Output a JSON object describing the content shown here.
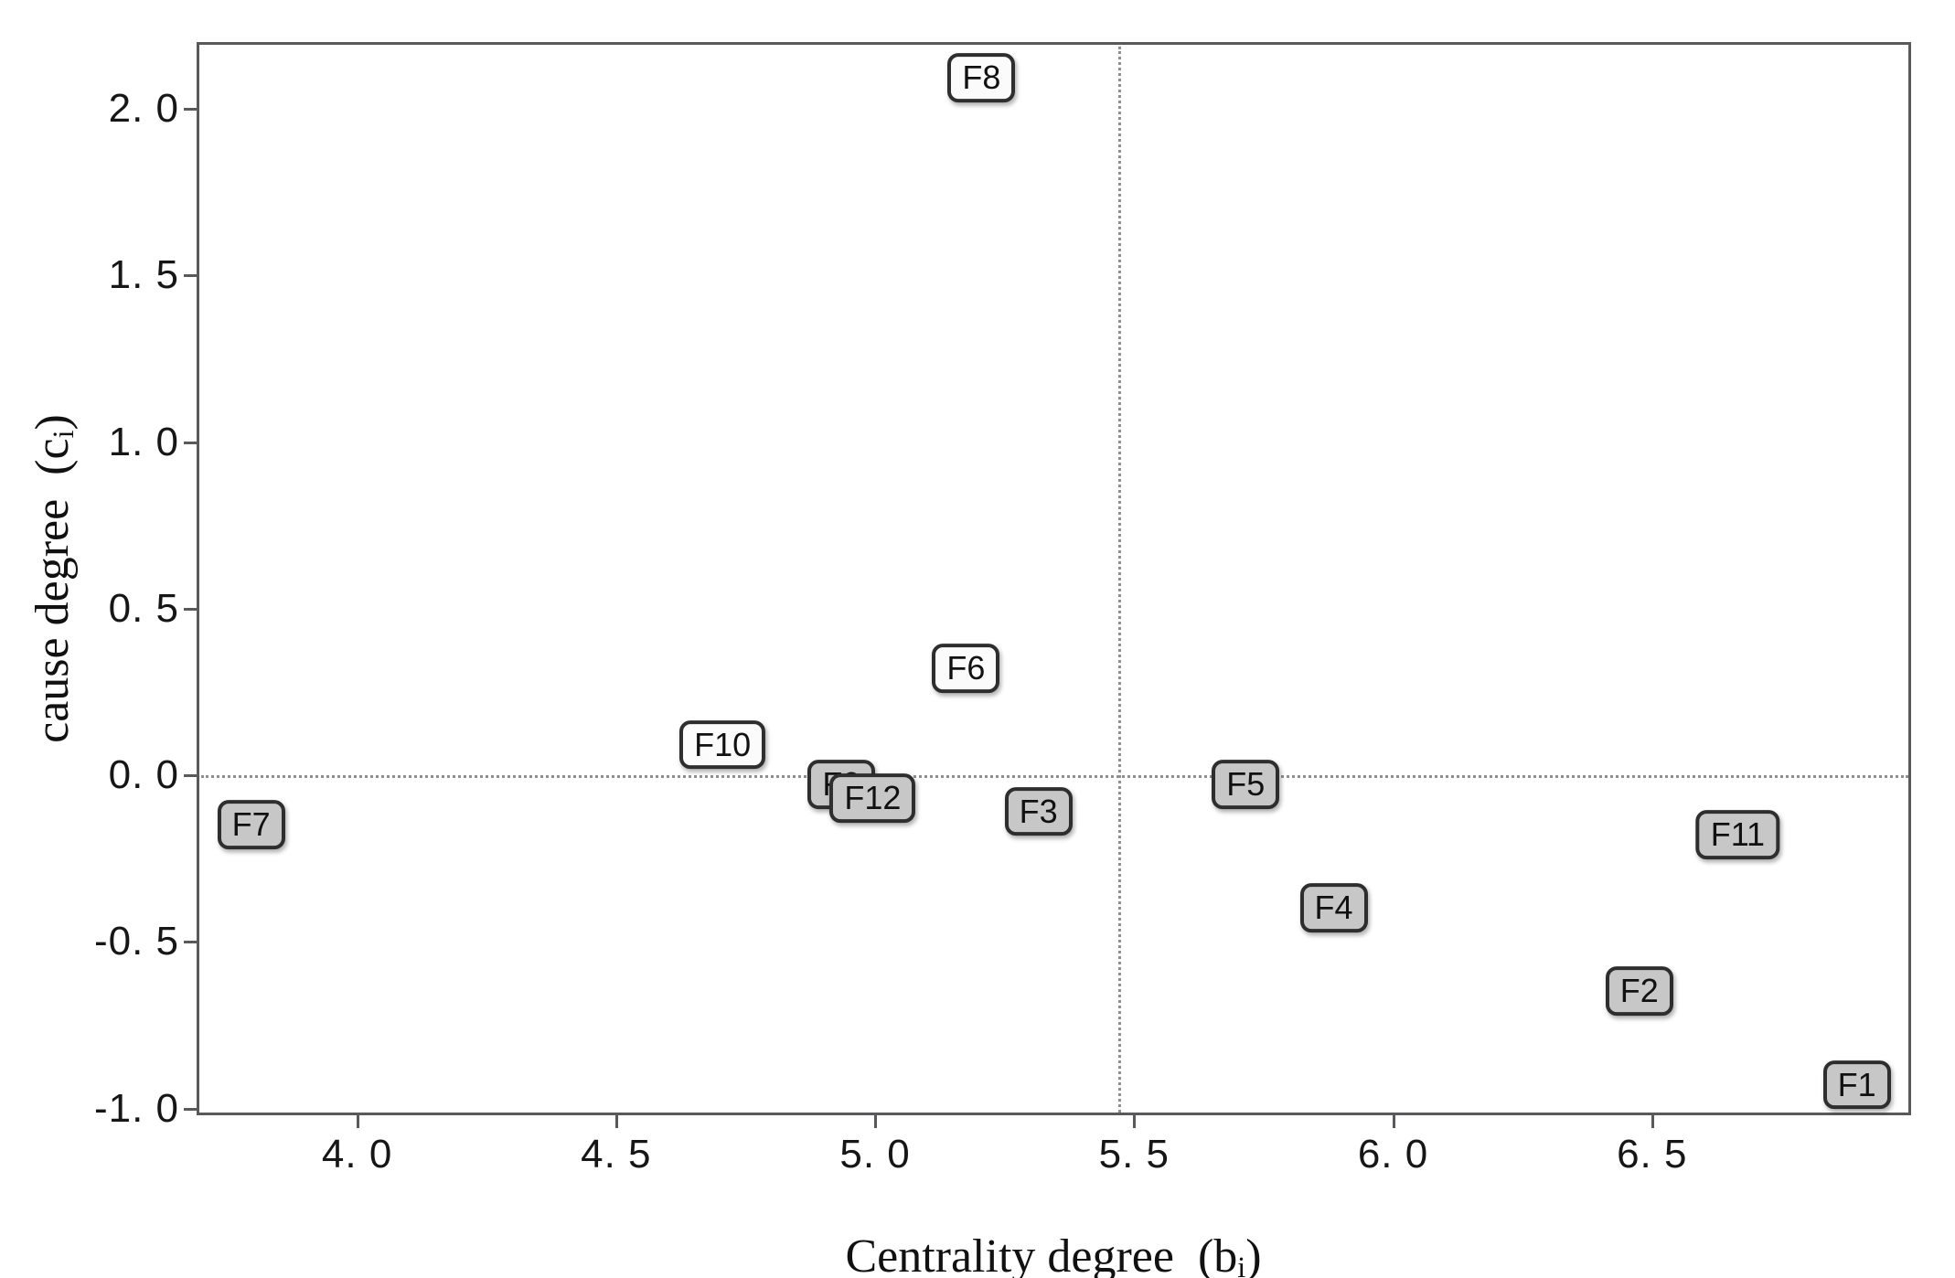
{
  "figure": {
    "x_axis_title": {
      "prefix": "Centrality degree  (b",
      "sub": "i",
      "suffix": ")"
    },
    "y_axis_title": {
      "prefix": "cause degree  (c",
      "sub": "i",
      "suffix": ")"
    }
  },
  "style": {
    "background": "#ffffff",
    "spine_color": "#59595b",
    "dotted_line_color": "#8f8f8f",
    "box_border_color": "#2e2e2e",
    "gray_fill": "#c7c7c7",
    "white_fill": "#fbfbfb",
    "text_color": "#161616"
  },
  "chart_data": {
    "type": "scatter",
    "title": "",
    "xlabel": "Centrality degree (bi)",
    "ylabel": "cause degree (ci)",
    "xlim": [
      3.69,
      7.0
    ],
    "ylim": [
      -1.02,
      2.2
    ],
    "grid": false,
    "legend": "none",
    "x_ticks": [
      {
        "value": 4.0,
        "label": "4. 0"
      },
      {
        "value": 4.5,
        "label": "4. 5"
      },
      {
        "value": 5.0,
        "label": "5. 0"
      },
      {
        "value": 5.5,
        "label": "5. 5"
      },
      {
        "value": 6.0,
        "label": "6. 0"
      },
      {
        "value": 6.5,
        "label": "6. 5"
      }
    ],
    "y_ticks": [
      {
        "value": 2.0,
        "label": "2. 0"
      },
      {
        "value": 1.5,
        "label": "1. 5"
      },
      {
        "value": 1.0,
        "label": "1. 0"
      },
      {
        "value": 0.5,
        "label": "0. 5"
      },
      {
        "value": 0.0,
        "label": "0. 0"
      },
      {
        "value": -0.5,
        "label": "-0. 5"
      },
      {
        "value": -1.0,
        "label": "-1. 0"
      }
    ],
    "reference_lines": {
      "horizontal_y": 0.0,
      "vertical_x": 5.47,
      "line_style": "dotted"
    },
    "points": [
      {
        "label": "F1",
        "x": 6.89,
        "y": -0.92,
        "group": "effect",
        "fill": "gray"
      },
      {
        "label": "F2",
        "x": 6.47,
        "y": -0.64,
        "group": "effect",
        "fill": "gray"
      },
      {
        "label": "F3",
        "x": 5.31,
        "y": -0.1,
        "group": "effect",
        "fill": "gray"
      },
      {
        "label": "F4",
        "x": 5.88,
        "y": -0.39,
        "group": "effect",
        "fill": "gray"
      },
      {
        "label": "F5",
        "x": 5.71,
        "y": -0.02,
        "group": "effect",
        "fill": "gray"
      },
      {
        "label": "F6",
        "x": 5.17,
        "y": 0.33,
        "group": "cause",
        "fill": "white"
      },
      {
        "label": "F7",
        "x": 3.79,
        "y": -0.14,
        "group": "effect",
        "fill": "gray"
      },
      {
        "label": "F8",
        "x": 5.2,
        "y": 2.1,
        "group": "cause",
        "fill": "white"
      },
      {
        "label": "F9",
        "x": 4.93,
        "y": -0.02,
        "group": "effect",
        "fill": "gray"
      },
      {
        "label": "F10",
        "x": 4.7,
        "y": 0.1,
        "group": "cause",
        "fill": "white"
      },
      {
        "label": "F11",
        "x": 6.66,
        "y": -0.17,
        "group": "effect",
        "fill": "gray"
      },
      {
        "label": "F12",
        "x": 4.99,
        "y": -0.06,
        "group": "effect",
        "fill": "gray"
      }
    ]
  }
}
